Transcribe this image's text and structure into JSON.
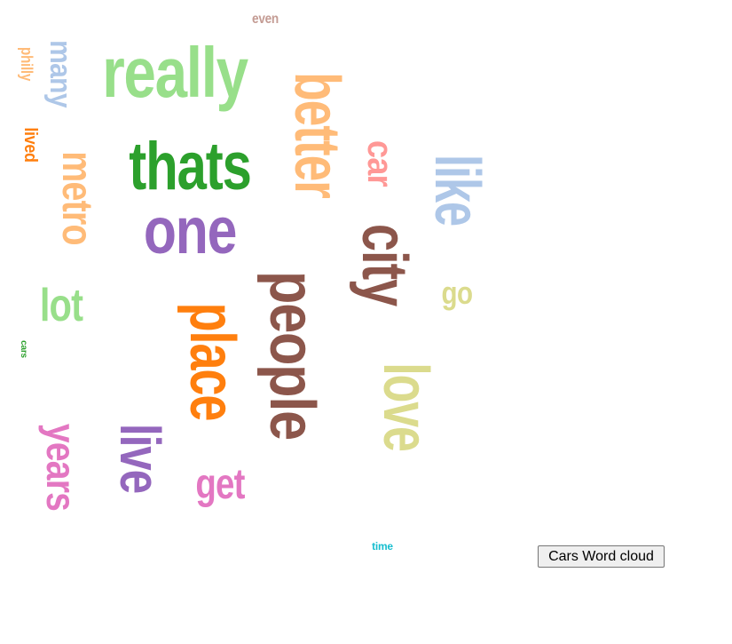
{
  "button": {
    "label": "Cars Word cloud"
  },
  "palette": {
    "blue-light": "#aec7e8",
    "green": "#2ca02c",
    "green-light": "#98df8a",
    "purple": "#9467bd",
    "orange": "#ff7f0e",
    "orange-light": "#ffbb78",
    "brown": "#8c564b",
    "brown-light": "#c49c94",
    "pink": "#e377c2",
    "red-light": "#ff9896",
    "olive-light": "#dbdb8d",
    "cyan": "#17becf"
  },
  "words": [
    {
      "text": "really",
      "color": "green-light",
      "rotation": "horizontal"
    },
    {
      "text": "thats",
      "color": "green",
      "rotation": "horizontal"
    },
    {
      "text": "one",
      "color": "purple",
      "rotation": "horizontal"
    },
    {
      "text": "better",
      "color": "orange-light",
      "rotation": "vertical"
    },
    {
      "text": "people",
      "color": "brown",
      "rotation": "vertical"
    },
    {
      "text": "city",
      "color": "brown",
      "rotation": "vertical"
    },
    {
      "text": "place",
      "color": "orange",
      "rotation": "vertical"
    },
    {
      "text": "love",
      "color": "olive-light",
      "rotation": "vertical"
    },
    {
      "text": "like",
      "color": "blue-light",
      "rotation": "vertical"
    },
    {
      "text": "live",
      "color": "purple",
      "rotation": "vertical"
    },
    {
      "text": "metro",
      "color": "orange-light",
      "rotation": "vertical"
    },
    {
      "text": "years",
      "color": "pink",
      "rotation": "vertical"
    },
    {
      "text": "car",
      "color": "red-light",
      "rotation": "vertical"
    },
    {
      "text": "many",
      "color": "blue-light",
      "rotation": "vertical"
    },
    {
      "text": "lot",
      "color": "green-light",
      "rotation": "horizontal"
    },
    {
      "text": "get",
      "color": "pink",
      "rotation": "horizontal"
    },
    {
      "text": "go",
      "color": "olive-light",
      "rotation": "horizontal"
    },
    {
      "text": "lived",
      "color": "orange",
      "rotation": "vertical"
    },
    {
      "text": "philly",
      "color": "orange-light",
      "rotation": "vertical"
    },
    {
      "text": "even",
      "color": "brown-light",
      "rotation": "horizontal"
    },
    {
      "text": "cars",
      "color": "green",
      "rotation": "vertical"
    },
    {
      "text": "time",
      "color": "cyan",
      "rotation": "horizontal"
    }
  ]
}
